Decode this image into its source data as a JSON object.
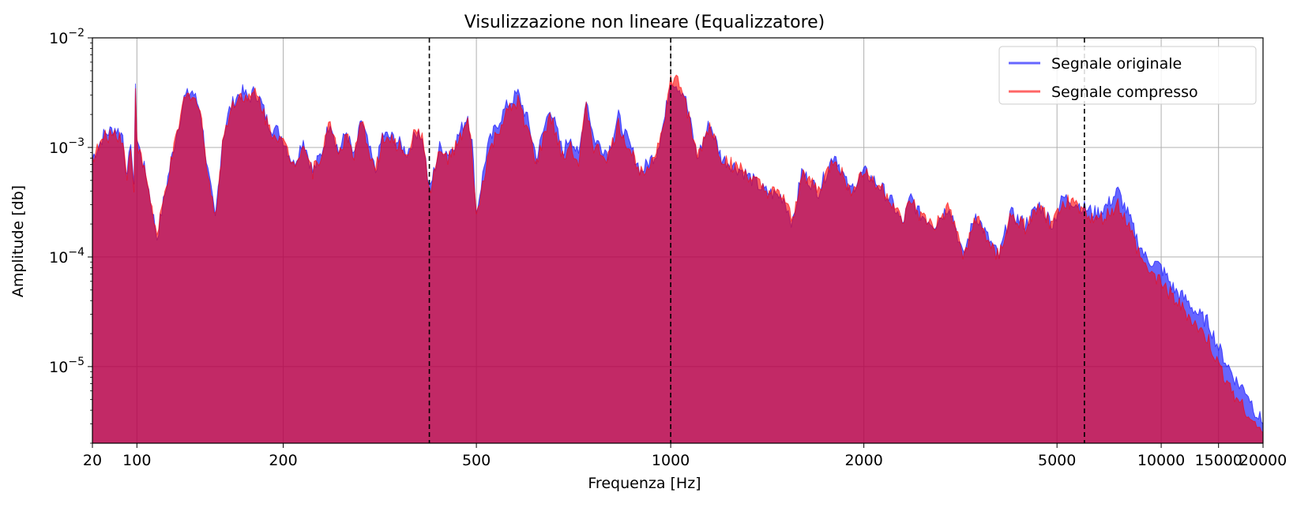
{
  "chart_data": {
    "type": "area",
    "title": "Visulizzazione non lineare (Equalizzatore)",
    "xlabel": "Frequenza [Hz]",
    "ylabel": "Amplitude [db]",
    "x_scale": "nonlinear (equalizer)",
    "y_scale": "log",
    "xlim": [
      20,
      20000
    ],
    "ylim": [
      2e-06,
      0.01
    ],
    "x_ticks": [
      20,
      100,
      200,
      500,
      1000,
      2000,
      5000,
      10000,
      15000,
      20000
    ],
    "x_tick_labels": [
      "20",
      "100",
      "200",
      "500",
      "1000",
      "2000",
      "5000",
      "10000",
      "15000",
      "20000"
    ],
    "y_ticks": [
      1e-05,
      0.0001,
      0.001,
      0.01
    ],
    "y_tick_labels": [
      {
        "base": "10",
        "exp": "−5"
      },
      {
        "base": "10",
        "exp": "−4"
      },
      {
        "base": "10",
        "exp": "−3"
      },
      {
        "base": "10",
        "exp": "−2"
      }
    ],
    "grid": true,
    "legend_position": "top-right",
    "vertical_lines": [
      400,
      1000,
      6000
    ],
    "series": [
      {
        "name": "Segnale originale",
        "color": "#0000ff",
        "points": [
          [
            20,
            0.0008
          ],
          [
            30,
            0.0013
          ],
          [
            45,
            0.0015
          ],
          [
            60,
            0.0013
          ],
          [
            70,
            0.0005
          ],
          [
            80,
            0.0012
          ],
          [
            90,
            0.0004
          ],
          [
            95,
            0.0042
          ],
          [
            100,
            0.0012
          ],
          [
            105,
            0.0005
          ],
          [
            110,
            0.00015
          ],
          [
            115,
            0.00045
          ],
          [
            120,
            0.0012
          ],
          [
            125,
            0.0028
          ],
          [
            130,
            0.0033
          ],
          [
            135,
            0.0022
          ],
          [
            140,
            0.0006
          ],
          [
            145,
            0.00022
          ],
          [
            150,
            0.0012
          ],
          [
            155,
            0.0022
          ],
          [
            160,
            0.0029
          ],
          [
            165,
            0.0032
          ],
          [
            170,
            0.0028
          ],
          [
            175,
            0.0033
          ],
          [
            180,
            0.0026
          ],
          [
            185,
            0.0018
          ],
          [
            190,
            0.0015
          ],
          [
            195,
            0.0014
          ],
          [
            200,
            0.0012
          ],
          [
            210,
            0.0007
          ],
          [
            220,
            0.0012
          ],
          [
            230,
            0.0006
          ],
          [
            240,
            0.0009
          ],
          [
            250,
            0.0018
          ],
          [
            260,
            0.0009
          ],
          [
            270,
            0.0014
          ],
          [
            280,
            0.0008
          ],
          [
            290,
            0.0018
          ],
          [
            300,
            0.001
          ],
          [
            310,
            0.0006
          ],
          [
            320,
            0.0013
          ],
          [
            340,
            0.0012
          ],
          [
            360,
            0.0009
          ],
          [
            380,
            0.0015
          ],
          [
            390,
            0.001
          ],
          [
            400,
            0.0004
          ],
          [
            420,
            0.001
          ],
          [
            440,
            0.0009
          ],
          [
            460,
            0.0013
          ],
          [
            480,
            0.002
          ],
          [
            490,
            0.0011
          ],
          [
            500,
            0.00025
          ],
          [
            520,
            0.001
          ],
          [
            540,
            0.0017
          ],
          [
            560,
            0.0025
          ],
          [
            580,
            0.0031
          ],
          [
            600,
            0.0018
          ],
          [
            620,
            0.0008
          ],
          [
            650,
            0.0024
          ],
          [
            680,
            0.0009
          ],
          [
            700,
            0.0013
          ],
          [
            720,
            0.0008
          ],
          [
            740,
            0.0029
          ],
          [
            760,
            0.0012
          ],
          [
            800,
            0.0009
          ],
          [
            830,
            0.0019
          ],
          [
            860,
            0.0011
          ],
          [
            900,
            0.0006
          ],
          [
            950,
            0.0009
          ],
          [
            980,
            0.0019
          ],
          [
            1000,
            0.0043
          ],
          [
            1020,
            0.0038
          ],
          [
            1050,
            0.0031
          ],
          [
            1080,
            0.0014
          ],
          [
            1100,
            0.0008
          ],
          [
            1150,
            0.0017
          ],
          [
            1200,
            0.0008
          ],
          [
            1300,
            0.0006
          ],
          [
            1400,
            0.0004
          ],
          [
            1500,
            0.00035
          ],
          [
            1550,
            0.0002
          ],
          [
            1600,
            0.0006
          ],
          [
            1700,
            0.0004
          ],
          [
            1800,
            0.0009
          ],
          [
            1900,
            0.0004
          ],
          [
            2000,
            0.0006
          ],
          [
            2100,
            0.0005
          ],
          [
            2200,
            0.0004
          ],
          [
            2300,
            0.0003
          ],
          [
            2400,
            0.0002
          ],
          [
            2500,
            0.00035
          ],
          [
            2600,
            0.00025
          ],
          [
            2800,
            0.0002
          ],
          [
            3000,
            0.0003
          ],
          [
            3100,
            0.00018
          ],
          [
            3200,
            0.0001
          ],
          [
            3400,
            0.00025
          ],
          [
            3600,
            0.00015
          ],
          [
            3800,
            0.0001
          ],
          [
            4000,
            0.00025
          ],
          [
            4300,
            0.0002
          ],
          [
            4600,
            0.0003
          ],
          [
            4900,
            0.0002
          ],
          [
            5200,
            0.00035
          ],
          [
            5500,
            0.00033
          ],
          [
            5800,
            0.0003
          ],
          [
            6000,
            0.00028
          ],
          [
            6500,
            0.00025
          ],
          [
            7000,
            0.0003
          ],
          [
            7500,
            0.0004
          ],
          [
            8000,
            0.00025
          ],
          [
            8500,
            0.00015
          ],
          [
            9000,
            0.0001
          ],
          [
            10000,
            8e-05
          ],
          [
            11000,
            5e-05
          ],
          [
            12000,
            4e-05
          ],
          [
            13000,
            3e-05
          ],
          [
            14000,
            2.5e-05
          ],
          [
            15000,
            1.5e-05
          ],
          [
            16000,
            1e-05
          ],
          [
            17000,
            7e-06
          ],
          [
            18000,
            6e-06
          ],
          [
            19000,
            4e-06
          ],
          [
            20000,
            3e-06
          ]
        ]
      },
      {
        "name": "Segnale compresso",
        "color": "#ff0000",
        "points": [
          [
            20,
            0.0008
          ],
          [
            30,
            0.0012
          ],
          [
            45,
            0.0014
          ],
          [
            60,
            0.0012
          ],
          [
            70,
            0.0005
          ],
          [
            80,
            0.0011
          ],
          [
            90,
            0.0004
          ],
          [
            95,
            0.004
          ],
          [
            100,
            0.0011
          ],
          [
            105,
            0.0005
          ],
          [
            110,
            0.00015
          ],
          [
            115,
            0.00045
          ],
          [
            120,
            0.0011
          ],
          [
            125,
            0.0027
          ],
          [
            130,
            0.0032
          ],
          [
            135,
            0.0021
          ],
          [
            140,
            0.0006
          ],
          [
            145,
            0.00022
          ],
          [
            150,
            0.0011
          ],
          [
            155,
            0.0021
          ],
          [
            160,
            0.0028
          ],
          [
            165,
            0.0031
          ],
          [
            170,
            0.0027
          ],
          [
            175,
            0.0032
          ],
          [
            180,
            0.0025
          ],
          [
            185,
            0.0017
          ],
          [
            190,
            0.0014
          ],
          [
            195,
            0.0013
          ],
          [
            200,
            0.0011
          ],
          [
            210,
            0.0007
          ],
          [
            220,
            0.0011
          ],
          [
            230,
            0.0006
          ],
          [
            240,
            0.0009
          ],
          [
            250,
            0.0017
          ],
          [
            260,
            0.0009
          ],
          [
            270,
            0.0013
          ],
          [
            280,
            0.0008
          ],
          [
            290,
            0.0017
          ],
          [
            300,
            0.001
          ],
          [
            310,
            0.0006
          ],
          [
            320,
            0.0012
          ],
          [
            340,
            0.0011
          ],
          [
            360,
            0.0009
          ],
          [
            380,
            0.0016
          ],
          [
            390,
            0.001
          ],
          [
            400,
            0.0004
          ],
          [
            420,
            0.0009
          ],
          [
            440,
            0.0008
          ],
          [
            460,
            0.0011
          ],
          [
            480,
            0.0017
          ],
          [
            490,
            0.0009
          ],
          [
            500,
            0.00022
          ],
          [
            520,
            0.0008
          ],
          [
            540,
            0.0014
          ],
          [
            560,
            0.0021
          ],
          [
            580,
            0.0026
          ],
          [
            600,
            0.0015
          ],
          [
            620,
            0.0007
          ],
          [
            650,
            0.002
          ],
          [
            680,
            0.0008
          ],
          [
            700,
            0.0011
          ],
          [
            720,
            0.0007
          ],
          [
            740,
            0.0024
          ],
          [
            760,
            0.001
          ],
          [
            800,
            0.0008
          ],
          [
            830,
            0.0016
          ],
          [
            860,
            0.001
          ],
          [
            900,
            0.0006
          ],
          [
            950,
            0.0009
          ],
          [
            980,
            0.002
          ],
          [
            1000,
            0.004
          ],
          [
            1020,
            0.0042
          ],
          [
            1050,
            0.003
          ],
          [
            1080,
            0.0013
          ],
          [
            1100,
            0.0008
          ],
          [
            1150,
            0.0016
          ],
          [
            1200,
            0.0008
          ],
          [
            1300,
            0.0006
          ],
          [
            1400,
            0.0004
          ],
          [
            1500,
            0.00035
          ],
          [
            1550,
            0.0002
          ],
          [
            1600,
            0.0006
          ],
          [
            1700,
            0.0004
          ],
          [
            1800,
            0.0008
          ],
          [
            1900,
            0.0004
          ],
          [
            2000,
            0.0006
          ],
          [
            2100,
            0.0005
          ],
          [
            2200,
            0.0004
          ],
          [
            2300,
            0.0003
          ],
          [
            2400,
            0.0002
          ],
          [
            2500,
            0.00033
          ],
          [
            2600,
            0.00024
          ],
          [
            2800,
            0.00019
          ],
          [
            3000,
            0.00028
          ],
          [
            3100,
            0.00017
          ],
          [
            3200,
            0.0001
          ],
          [
            3400,
            0.00023
          ],
          [
            3600,
            0.00014
          ],
          [
            3800,
            0.0001
          ],
          [
            4000,
            0.00023
          ],
          [
            4300,
            0.00019
          ],
          [
            4600,
            0.00028
          ],
          [
            4900,
            0.00019
          ],
          [
            5200,
            0.00033
          ],
          [
            5500,
            0.00031
          ],
          [
            5800,
            0.00029
          ],
          [
            6000,
            0.00026
          ],
          [
            6500,
            0.00021
          ],
          [
            7000,
            0.00024
          ],
          [
            7500,
            0.0003
          ],
          [
            8000,
            0.0002
          ],
          [
            8500,
            0.00012
          ],
          [
            9000,
            8e-05
          ],
          [
            10000,
            6e-05
          ],
          [
            11000,
            4e-05
          ],
          [
            12000,
            3e-05
          ],
          [
            13000,
            2.2e-05
          ],
          [
            14000,
            1.7e-05
          ],
          [
            15000,
            1e-05
          ],
          [
            16000,
            7e-06
          ],
          [
            17000,
            5e-06
          ],
          [
            18000,
            4e-06
          ],
          [
            19000,
            3e-06
          ],
          [
            20000,
            2.5e-06
          ]
        ]
      }
    ]
  }
}
